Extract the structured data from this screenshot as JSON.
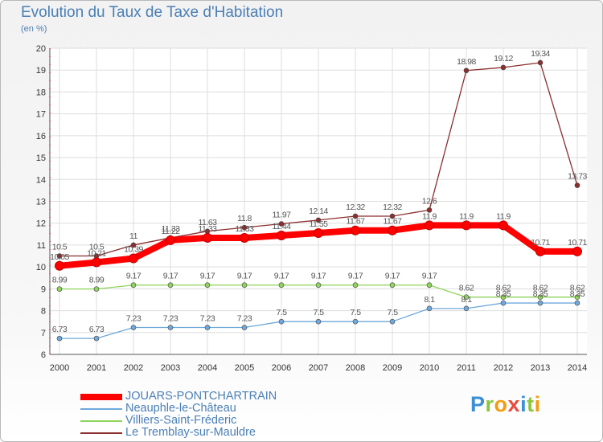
{
  "header": {
    "title": "Evolution du Taux de Taxe d'Habitation",
    "unit": "(en %)"
  },
  "logo": {
    "text": "Proxiti",
    "letters": [
      {
        "ch": "P",
        "color": "#3c8fd4"
      },
      {
        "ch": "r",
        "color": "#8cc63f"
      },
      {
        "ch": "o",
        "color": "#f39c12"
      },
      {
        "ch": "x",
        "color": "#e84c3d"
      },
      {
        "ch": "i",
        "color": "#3c8fd4"
      },
      {
        "ch": "t",
        "color": "#8cc63f"
      },
      {
        "ch": "i",
        "color": "#f39c12"
      }
    ]
  },
  "chart_data": {
    "type": "line",
    "title": "Evolution du Taux de Taxe d'Habitation",
    "ylabel": "(en %)",
    "ylim": [
      6,
      20
    ],
    "yticks": [
      "6",
      "7",
      "8",
      "9",
      "10",
      "11",
      "12",
      "13",
      "14",
      "15",
      "16",
      "17",
      "18",
      "19",
      "20"
    ],
    "categories": [
      "2000",
      "2001",
      "2002",
      "2003",
      "2004",
      "2005",
      "2006",
      "2007",
      "2008",
      "2009",
      "2010",
      "2011",
      "2012",
      "2013",
      "2014"
    ],
    "grid": true,
    "legend_position": "bottom-left",
    "series": [
      {
        "name": "JOUARS-PONTCHARTRAIN",
        "color": "#ff0000",
        "values": [
          10.05,
          10.21,
          10.39,
          11.22,
          11.33,
          11.33,
          11.44,
          11.55,
          11.67,
          11.67,
          11.9,
          11.9,
          11.9,
          10.71,
          10.71
        ],
        "labels": [
          "10.05",
          "10.21",
          "10.39",
          "11.22",
          "11.33",
          "11.33",
          "11.44",
          "11.55",
          "11.67",
          "11.67",
          "11.9",
          "11.9",
          "11.9",
          "10.71",
          "10.71"
        ]
      },
      {
        "name": "Neauphle-le-Château",
        "color": "#6fa8dc",
        "values": [
          6.73,
          6.73,
          7.23,
          7.23,
          7.23,
          7.23,
          7.5,
          7.5,
          7.5,
          7.5,
          8.1,
          8.1,
          8.35,
          8.35,
          8.35
        ],
        "labels": [
          "6.73",
          "6.73",
          "7.23",
          "7.23",
          "7.23",
          "7.23",
          "7.5",
          "7.5",
          "7.5",
          "7.5",
          "8.1",
          "8.1",
          "8.35",
          "8.35",
          "8.35"
        ]
      },
      {
        "name": "Villiers-Saint-Fréderic",
        "color": "#8ed45a",
        "values": [
          8.99,
          8.99,
          9.17,
          9.17,
          9.17,
          9.17,
          9.17,
          9.17,
          9.17,
          9.17,
          9.17,
          8.62,
          8.62,
          8.62,
          8.62
        ],
        "labels": [
          "8.99",
          "8.99",
          "9.17",
          "9.17",
          "9.17",
          "9.17",
          "9.17",
          "9.17",
          "9.17",
          "9.17",
          "9.17",
          "8.62",
          "8.62",
          "8.62",
          "8.62"
        ]
      },
      {
        "name": "Le Tremblay-sur-Mauldre",
        "color": "#8b2e2e",
        "values": [
          10.5,
          10.5,
          11,
          11.33,
          11.63,
          11.8,
          11.97,
          12.14,
          12.32,
          12.32,
          12.6,
          18.98,
          19.12,
          19.34,
          13.73
        ],
        "labels": [
          "10.5",
          "10.5",
          "11",
          "11.33",
          "11.63",
          "11.8",
          "11.97",
          "12.14",
          "12.32",
          "12.32",
          "12.6",
          "18.98",
          "19.12",
          "19.34",
          "13.73"
        ]
      }
    ]
  }
}
